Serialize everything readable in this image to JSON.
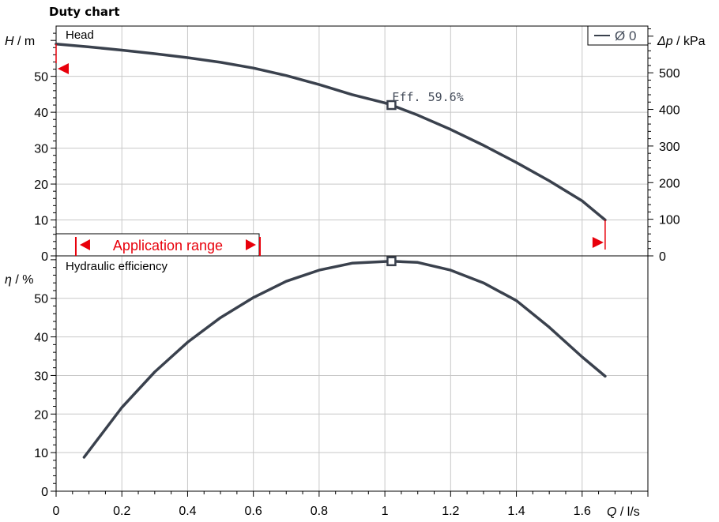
{
  "title": "Duty chart",
  "chart_data": [
    {
      "type": "line",
      "panel": "Head",
      "ylabel_symbol": "H",
      "ylabel_unit": " / m",
      "y2label_symbol": "Δp",
      "y2label_unit": " / kPa",
      "xlim": [
        0,
        1.8
      ],
      "ylim": [
        0,
        64
      ],
      "y2lim": [
        0,
        627.6
      ],
      "y_ticks": [
        0,
        10,
        20,
        30,
        40,
        50
      ],
      "y2_ticks": [
        0,
        100,
        200,
        300,
        400,
        500
      ],
      "series": [
        {
          "name": "Ø 0",
          "x": [
            0,
            0.1,
            0.2,
            0.3,
            0.4,
            0.5,
            0.6,
            0.7,
            0.8,
            0.9,
            1.0,
            1.02,
            1.1,
            1.2,
            1.3,
            1.4,
            1.5,
            1.6,
            1.67
          ],
          "y": [
            59,
            58.2,
            57.3,
            56.3,
            55.2,
            53.9,
            52.3,
            50.2,
            47.7,
            44.9,
            42.6,
            42,
            39.2,
            35.2,
            30.8,
            26.0,
            20.9,
            15.3,
            10
          ]
        }
      ],
      "legend": "Ø 0",
      "legend_position": "top-right",
      "annotations": [
        {
          "text": "Eff.  59.6%",
          "x": 1.02,
          "y": 42
        },
        {
          "text": "Application range",
          "x_range": [
            0.06,
            0.62
          ]
        }
      ],
      "grid": true
    },
    {
      "type": "line",
      "panel": "Hydraulic efficiency",
      "ylabel_symbol": "η",
      "ylabel_unit": " / %",
      "xlabel_symbol": "Q",
      "xlabel_unit": " / l/s",
      "xlim": [
        0,
        1.8
      ],
      "ylim": [
        0,
        61
      ],
      "x_ticks": [
        0,
        0.2,
        0.4,
        0.6,
        0.8,
        1,
        1.2,
        1.4,
        1.6
      ],
      "x_tick_labels": [
        "0",
        "0.2",
        "0.4",
        "0.6",
        "0.8",
        "1",
        "1.2",
        "1.4",
        "1.6"
      ],
      "y_ticks": [
        0,
        10,
        20,
        30,
        40,
        50
      ],
      "series": [
        {
          "name": "",
          "x": [
            0.085,
            0.2,
            0.3,
            0.4,
            0.5,
            0.6,
            0.7,
            0.8,
            0.9,
            1.02,
            1.1,
            1.2,
            1.3,
            1.4,
            1.5,
            1.6,
            1.67
          ],
          "y": [
            8.8,
            21.7,
            30.9,
            38.6,
            45.0,
            50.2,
            54.4,
            57.3,
            59.1,
            59.6,
            59.3,
            57.3,
            54.0,
            49.4,
            42.5,
            34.8,
            29.8
          ]
        }
      ],
      "annotations": [
        {
          "text": "",
          "x": 1.02,
          "y": 59.6
        }
      ],
      "grid": true
    }
  ],
  "colors": {
    "curve": "#3a414d",
    "grid": "#c8c8c8",
    "accent_red": "#e8000b",
    "frame": "#000000"
  }
}
